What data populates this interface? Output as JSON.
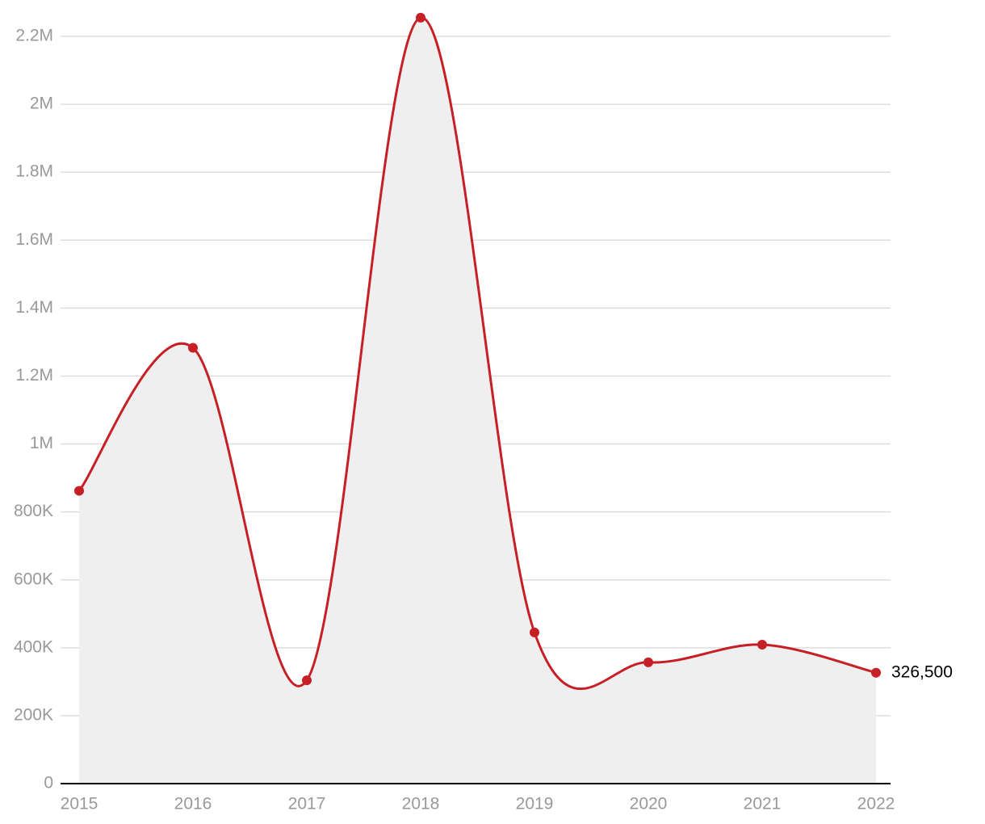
{
  "chart_data": {
    "type": "area-line",
    "categories": [
      "2015",
      "2016",
      "2017",
      "2018",
      "2019",
      "2020",
      "2021",
      "2022"
    ],
    "values": [
      862000,
      1283000,
      304000,
      2255000,
      445000,
      357000,
      409000,
      326500
    ],
    "value_labels": [
      null,
      null,
      null,
      null,
      null,
      null,
      null,
      "326,500"
    ],
    "color": "#c62026",
    "fill": "#efefef",
    "ylim": [
      0,
      2200000
    ],
    "yticks": [
      0,
      {
        "value": 200000,
        "label": "200K"
      },
      {
        "value": 400000,
        "label": "400K"
      },
      {
        "value": 600000,
        "label": "600K"
      },
      {
        "value": 800000,
        "label": "800K"
      },
      {
        "value": 1000000,
        "label": "1M"
      },
      {
        "value": 1200000,
        "label": "1.2M"
      },
      {
        "value": 1400000,
        "label": "1.4M"
      },
      {
        "value": 1600000,
        "label": "1.6M"
      },
      {
        "value": 1800000,
        "label": "1.8M"
      },
      {
        "value": 2000000,
        "label": "2M"
      },
      {
        "value": 2200000,
        "label": "2.2M"
      }
    ],
    "grid": true
  }
}
